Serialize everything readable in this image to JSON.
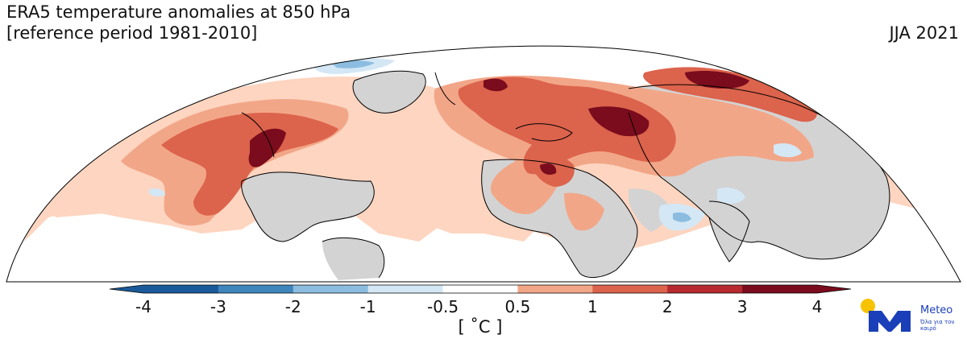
{
  "header": {
    "title": "ERA5 temperature anomalies at 850 hPa\n[reference period 1981-2010]",
    "period": "JJA 2021"
  },
  "colorbar": {
    "ticks": [
      "-4",
      "-3",
      "-2",
      "-1",
      "-0.5",
      "0.5",
      "1",
      "2",
      "3",
      "4"
    ],
    "unit": "[ ˚C ]",
    "colors": [
      "#1a5a9a",
      "#3f86bd",
      "#8cbde0",
      "#d4e7f5",
      "#ffffff",
      "#fdd5c0",
      "#f2a688",
      "#dc634c",
      "#b72a2f",
      "#7a0c1d"
    ]
  },
  "map": {
    "land_color": "#d3d3d3",
    "coastline_color": "#000000"
  },
  "logo": {
    "name": "Meteo",
    "tagline": "Όλα για τον καιρό",
    "brand_color": "#1a3fb8",
    "sun_color": "#f7c300"
  }
}
